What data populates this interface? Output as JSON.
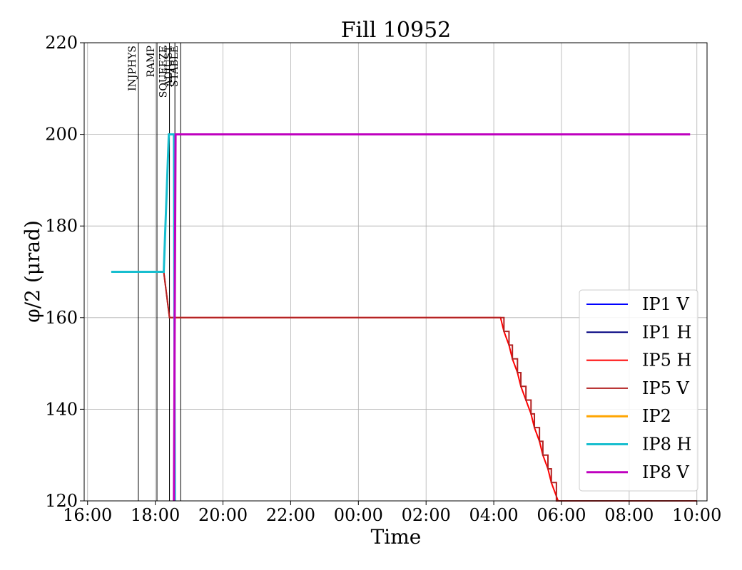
{
  "chart_data": {
    "type": "line",
    "title": "Fill 10952",
    "xlabel": "Time",
    "ylabel": "φ/2 (μrad)",
    "x_unit": "hours",
    "xlim": [
      15.9,
      34.3
    ],
    "ylim": [
      120,
      220
    ],
    "xticks": [
      {
        "x": 16,
        "label": "16:00"
      },
      {
        "x": 18,
        "label": "18:00"
      },
      {
        "x": 20,
        "label": "20:00"
      },
      {
        "x": 22,
        "label": "22:00"
      },
      {
        "x": 24,
        "label": "00:00"
      },
      {
        "x": 26,
        "label": "02:00"
      },
      {
        "x": 28,
        "label": "04:00"
      },
      {
        "x": 30,
        "label": "06:00"
      },
      {
        "x": 32,
        "label": "08:00"
      },
      {
        "x": 34,
        "label": "10:00"
      }
    ],
    "yticks": [
      {
        "y": 120,
        "label": "120"
      },
      {
        "y": 140,
        "label": "140"
      },
      {
        "y": 160,
        "label": "160"
      },
      {
        "y": 180,
        "label": "180"
      },
      {
        "y": 200,
        "label": "200"
      },
      {
        "y": 220,
        "label": "220"
      }
    ],
    "grid": true,
    "legend_position": "bottom-right",
    "phases": [
      {
        "label": "INJPHYS",
        "x": 17.5
      },
      {
        "label": "RAMP",
        "x": 18.05
      },
      {
        "label": "SQUEEZE",
        "x": 18.42
      },
      {
        "label": "ADJUST",
        "x": 18.58
      },
      {
        "label": "STABLE",
        "x": 18.75
      }
    ],
    "series": [
      {
        "name": "IP1 V",
        "color": "#0000ff",
        "width": 2,
        "points": []
      },
      {
        "name": "IP1 H",
        "color": "#00007f",
        "width": 2,
        "points": []
      },
      {
        "name": "IP5 H",
        "color": "#ff0000",
        "width": 2,
        "points": [
          [
            16.7,
            170
          ],
          [
            18.25,
            170
          ],
          [
            18.42,
            160
          ],
          [
            28.2,
            160
          ],
          [
            28.3,
            157
          ],
          [
            28.45,
            154
          ],
          [
            28.55,
            151
          ],
          [
            28.7,
            148
          ],
          [
            28.8,
            145
          ],
          [
            28.95,
            142
          ],
          [
            29.1,
            139
          ],
          [
            29.2,
            136
          ],
          [
            29.35,
            133
          ],
          [
            29.45,
            130
          ],
          [
            29.6,
            127
          ],
          [
            29.7,
            124
          ],
          [
            29.85,
            121
          ],
          [
            29.9,
            120
          ],
          [
            34.0,
            120
          ]
        ]
      },
      {
        "name": "IP5 V",
        "color": "#b22222",
        "width": 2,
        "points": [
          [
            16.7,
            170
          ],
          [
            18.25,
            170
          ],
          [
            18.42,
            160
          ],
          [
            28.2,
            160
          ],
          [
            28.3,
            160
          ],
          [
            28.3,
            157
          ],
          [
            28.45,
            157
          ],
          [
            28.45,
            154
          ],
          [
            28.55,
            154
          ],
          [
            28.55,
            151
          ],
          [
            28.7,
            151
          ],
          [
            28.7,
            148
          ],
          [
            28.8,
            148
          ],
          [
            28.8,
            145
          ],
          [
            28.95,
            145
          ],
          [
            28.95,
            142
          ],
          [
            29.1,
            142
          ],
          [
            29.1,
            139
          ],
          [
            29.2,
            139
          ],
          [
            29.2,
            136
          ],
          [
            29.35,
            136
          ],
          [
            29.35,
            133
          ],
          [
            29.45,
            133
          ],
          [
            29.45,
            130
          ],
          [
            29.6,
            130
          ],
          [
            29.6,
            127
          ],
          [
            29.7,
            127
          ],
          [
            29.7,
            124
          ],
          [
            29.85,
            124
          ],
          [
            29.85,
            120
          ],
          [
            34.0,
            120
          ]
        ]
      },
      {
        "name": "IP2",
        "color": "#ffa500",
        "width": 3,
        "points": []
      },
      {
        "name": "IP8 H",
        "color": "#17becf",
        "width": 3,
        "points": [
          [
            16.7,
            170
          ],
          [
            18.25,
            170
          ],
          [
            18.4,
            200
          ],
          [
            18.55,
            200
          ],
          [
            18.58,
            120
          ]
        ]
      },
      {
        "name": "IP8 V",
        "color": "#bf00bf",
        "width": 3,
        "points": [
          [
            18.55,
            120
          ],
          [
            18.6,
            200
          ],
          [
            33.8,
            200
          ]
        ]
      }
    ]
  }
}
